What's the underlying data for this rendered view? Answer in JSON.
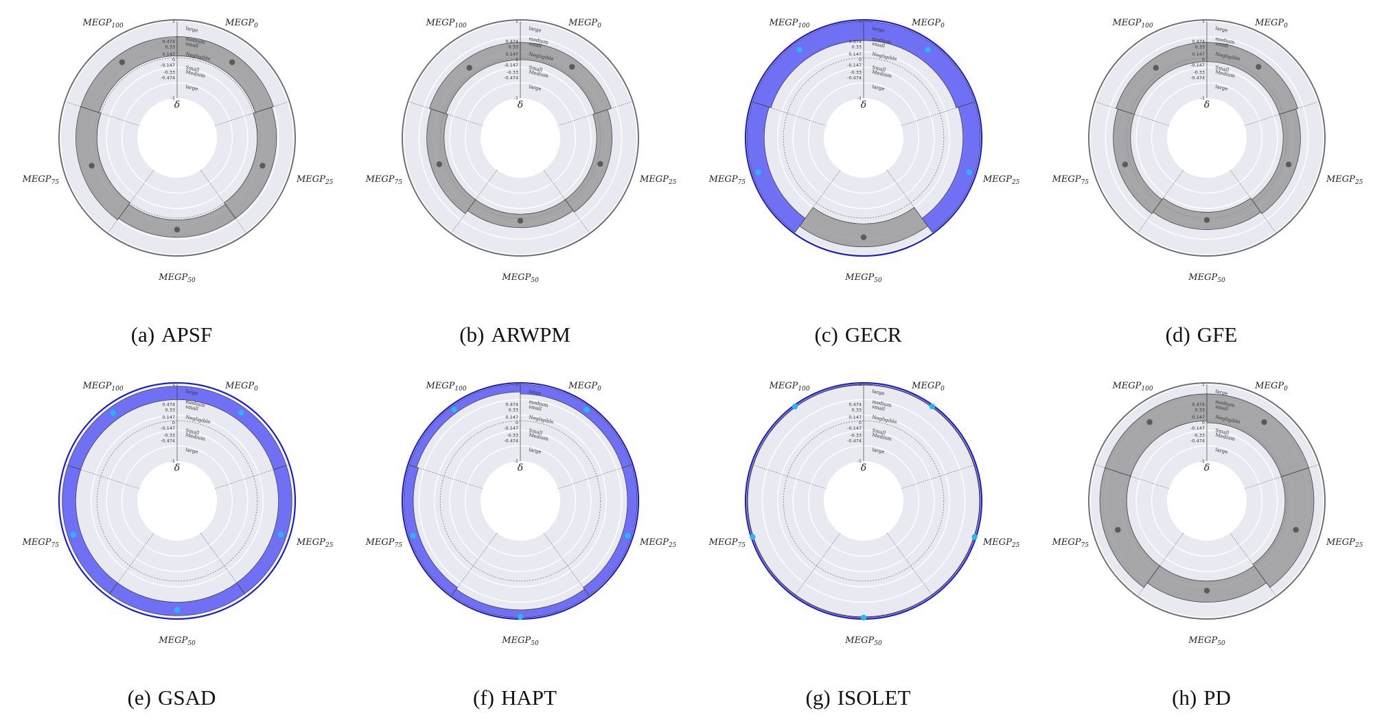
{
  "figure": {
    "category_labels": [
      {
        "base": "MEGP",
        "sub": "0"
      },
      {
        "base": "MEGP",
        "sub": "25"
      },
      {
        "base": "MEGP",
        "sub": "50"
      },
      {
        "base": "MEGP",
        "sub": "75"
      },
      {
        "base": "MEGP",
        "sub": "100"
      }
    ],
    "center_symbol": "δ",
    "radial_ticks": [
      "1",
      "0.474",
      "0.33",
      "0.147",
      "0",
      "-0.147",
      "-0.33",
      "-0.474",
      "-1"
    ],
    "effect_labels": [
      "large",
      "medium",
      "small",
      "Negligible",
      "Small",
      "Medium",
      "large"
    ],
    "colors": {
      "outer_ring": "#6e6e6e",
      "highlight_ring": "#1a1adb",
      "band_gray": "#8f8f8f",
      "band_blue": "#5b5bf5",
      "point_gray": "#5a5a5a",
      "point_blue": "#29b6f6",
      "background": "#e9e9f1"
    }
  },
  "chart_data": [
    {
      "type": "radial-interval",
      "caption_tag": "(a)",
      "title": "APSF",
      "highlight": false,
      "categories": [
        "MEGP0",
        "MEGP25",
        "MEGP50",
        "MEGP75",
        "MEGP100"
      ],
      "intervals": [
        [
          0.1,
          0.6
        ],
        [
          0.05,
          0.55
        ],
        [
          0.1,
          0.55
        ],
        [
          0.05,
          0.6
        ],
        [
          0.1,
          0.6
        ]
      ],
      "points": [
        0.4,
        0.3,
        0.35,
        0.3,
        0.4
      ],
      "significant": [
        false,
        false,
        false,
        false,
        false
      ],
      "ylim": [
        -1,
        1
      ]
    },
    {
      "type": "radial-interval",
      "caption_tag": "(b)",
      "title": "ARWPM",
      "highlight": false,
      "categories": [
        "MEGP0",
        "MEGP25",
        "MEGP50",
        "MEGP75",
        "MEGP100"
      ],
      "intervals": [
        [
          0.0,
          0.45
        ],
        [
          -0.05,
          0.35
        ],
        [
          -0.05,
          0.3
        ],
        [
          -0.05,
          0.4
        ],
        [
          0.0,
          0.45
        ]
      ],
      "points": [
        0.25,
        0.15,
        0.12,
        0.18,
        0.22
      ],
      "significant": [
        false,
        false,
        false,
        false,
        false
      ],
      "ylim": [
        -1,
        1
      ]
    },
    {
      "type": "radial-interval",
      "caption_tag": "(c)",
      "title": "GECR",
      "highlight": true,
      "categories": [
        "MEGP0",
        "MEGP25",
        "MEGP50",
        "MEGP75",
        "MEGP100"
      ],
      "intervals": [
        [
          0.5,
          1.0
        ],
        [
          0.55,
          1.0
        ],
        [
          0.2,
          0.8
        ],
        [
          0.55,
          1.0
        ],
        [
          0.5,
          1.0
        ]
      ],
      "points": [
        0.8,
        0.85,
        0.55,
        0.85,
        0.8
      ],
      "significant": [
        true,
        true,
        false,
        true,
        true
      ],
      "ylim": [
        -1,
        1
      ]
    },
    {
      "type": "radial-interval",
      "caption_tag": "(d)",
      "title": "GFE",
      "highlight": false,
      "categories": [
        "MEGP0",
        "MEGP25",
        "MEGP50",
        "MEGP75",
        "MEGP100"
      ],
      "intervals": [
        [
          -0.05,
          0.45
        ],
        [
          -0.05,
          0.4
        ],
        [
          -0.1,
          0.35
        ],
        [
          -0.05,
          0.4
        ],
        [
          -0.05,
          0.45
        ]
      ],
      "points": [
        0.25,
        0.2,
        0.1,
        0.2,
        0.22
      ],
      "significant": [
        false,
        false,
        false,
        false,
        false
      ],
      "ylim": [
        -1,
        1
      ]
    },
    {
      "type": "radial-interval",
      "caption_tag": "(e)",
      "title": "GSAD",
      "highlight": true,
      "categories": [
        "MEGP0",
        "MEGP25",
        "MEGP50",
        "MEGP75",
        "MEGP100"
      ],
      "intervals": [
        [
          0.6,
          0.95
        ],
        [
          0.6,
          0.95
        ],
        [
          0.6,
          0.95
        ],
        [
          0.6,
          0.95
        ],
        [
          0.6,
          0.95
        ]
      ],
      "points": [
        0.8,
        0.8,
        0.8,
        0.8,
        0.8
      ],
      "significant": [
        true,
        true,
        true,
        true,
        true
      ],
      "ylim": [
        -1,
        1
      ]
    },
    {
      "type": "radial-interval",
      "caption_tag": "(f)",
      "title": "HAPT",
      "highlight": true,
      "categories": [
        "MEGP0",
        "MEGP25",
        "MEGP50",
        "MEGP75",
        "MEGP100"
      ],
      "intervals": [
        [
          0.75,
          1.0
        ],
        [
          0.75,
          1.0
        ],
        [
          0.8,
          1.0
        ],
        [
          0.75,
          1.0
        ],
        [
          0.8,
          1.0
        ]
      ],
      "points": [
        0.9,
        0.9,
        0.98,
        0.9,
        0.9
      ],
      "significant": [
        true,
        true,
        true,
        true,
        true
      ],
      "ylim": [
        -1,
        1
      ]
    },
    {
      "type": "radial-interval",
      "caption_tag": "(g)",
      "title": "ISOLET",
      "highlight": true,
      "categories": [
        "MEGP0",
        "MEGP25",
        "MEGP50",
        "MEGP75",
        "MEGP100"
      ],
      "intervals": [
        [
          0.98,
          1.0
        ],
        [
          0.98,
          1.0
        ],
        [
          0.98,
          1.0
        ],
        [
          0.98,
          1.0
        ],
        [
          0.98,
          1.0
        ]
      ],
      "points": [
        1.0,
        1.0,
        1.0,
        1.0,
        1.0
      ],
      "significant": [
        true,
        true,
        true,
        true,
        true
      ],
      "ylim": [
        -1,
        1
      ]
    },
    {
      "type": "radial-interval",
      "caption_tag": "(h)",
      "title": "PD",
      "highlight": false,
      "categories": [
        "MEGP0",
        "MEGP25",
        "MEGP50",
        "MEGP75",
        "MEGP100"
      ],
      "intervals": [
        [
          0.0,
          0.75
        ],
        [
          0.0,
          0.75
        ],
        [
          0.05,
          0.6
        ],
        [
          0.05,
          0.75
        ],
        [
          0.05,
          0.75
        ]
      ],
      "points": [
        0.5,
        0.4,
        0.3,
        0.4,
        0.5
      ],
      "significant": [
        false,
        false,
        false,
        false,
        false
      ],
      "ylim": [
        -1,
        1
      ]
    }
  ]
}
